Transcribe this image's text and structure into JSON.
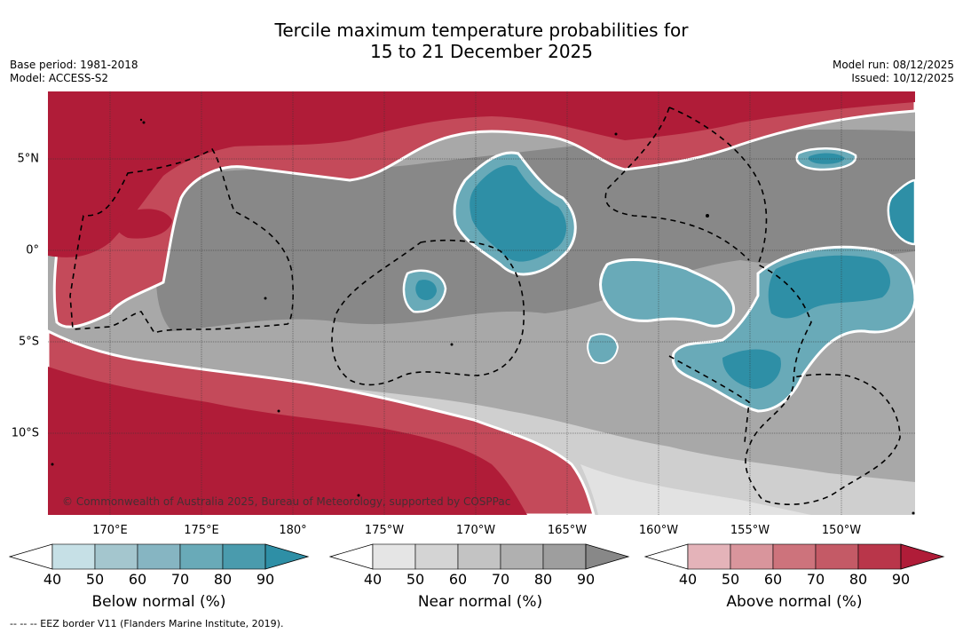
{
  "title_line1": "Tercile maximum temperature probabilities for",
  "title_line2": "15 to 21 December 2025",
  "base_period": "Base period: 1981-2018",
  "model": "Model: ACCESS-S2",
  "model_run": "Model run: 08/12/2025",
  "issued": "Issued: 10/12/2025",
  "lat_labels": [
    "5°N",
    "0°",
    "5°S",
    "10°S"
  ],
  "lon_labels": [
    "170°E",
    "175°E",
    "180°",
    "175°W",
    "170°W",
    "165°W",
    "160°W",
    "155°W",
    "150°W"
  ],
  "copyright": "© Commonwealth of Australia 2025, Bureau of Meteorology, supported by COSPPac",
  "colorbars": [
    {
      "label": "Below normal (%)",
      "ticks": [
        "40",
        "50",
        "60",
        "70",
        "80",
        "90"
      ],
      "colors": [
        "#ffffff",
        "#c6e0e6",
        "#a4c6ce",
        "#86b5c2",
        "#69aab8",
        "#4a9bad",
        "#2e8fa6"
      ]
    },
    {
      "label": "Near normal (%)",
      "ticks": [
        "40",
        "50",
        "60",
        "70",
        "80",
        "90"
      ],
      "colors": [
        "#ffffff",
        "#e5e5e5",
        "#d4d4d4",
        "#c3c3c3",
        "#b0b0b0",
        "#9e9e9e",
        "#888888"
      ]
    },
    {
      "label": "Above normal (%)",
      "ticks": [
        "40",
        "50",
        "60",
        "70",
        "80",
        "90"
      ],
      "colors": [
        "#ffffff",
        "#e4b3b9",
        "#d9959c",
        "#cd737c",
        "#c45a66",
        "#b9364a",
        "#b01c38"
      ]
    }
  ],
  "footnote": "--  --  -- EEZ border V11 (Flanders Marine Institute, 2019)."
}
